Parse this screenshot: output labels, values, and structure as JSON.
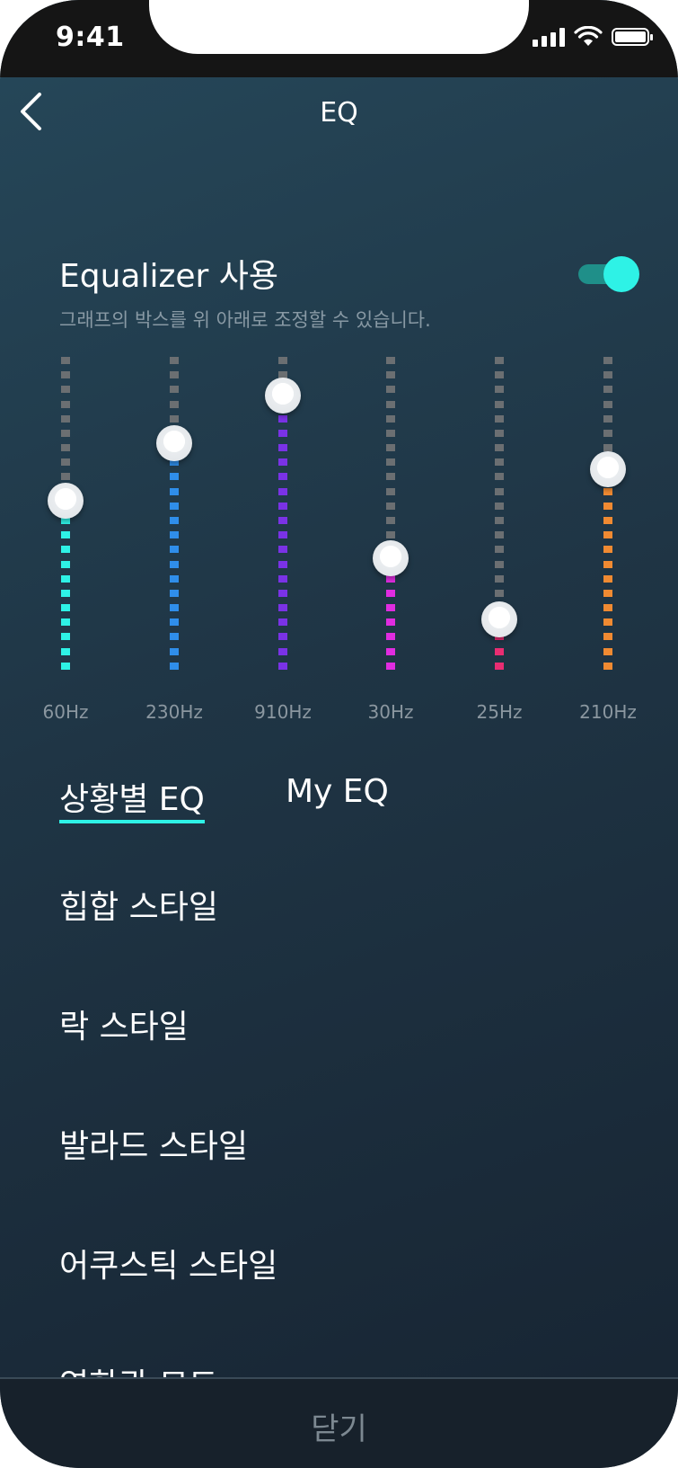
{
  "status_bar": {
    "time": "9:41"
  },
  "header": {
    "title": "EQ",
    "back_icon": "chevron-left-icon"
  },
  "equalizer": {
    "label": "Equalizer 사용",
    "hint": "그래프의 박스를 위 아래로 조정할 수 있습니다.",
    "enabled": true,
    "toggle_color": "#2ef2e6",
    "inactive_color": "#6b6f72",
    "bands": [
      {
        "hz": "60Hz",
        "level": 0.55,
        "color": "#2ef2e6"
      },
      {
        "hz": "230Hz",
        "level": 0.73,
        "color": "#2f8eea"
      },
      {
        "hz": "910Hz",
        "level": 0.88,
        "color": "#7a32e6"
      },
      {
        "hz": "30Hz",
        "level": 0.37,
        "color": "#e02ce0"
      },
      {
        "hz": "25Hz",
        "level": 0.18,
        "color": "#e82d72"
      },
      {
        "hz": "210Hz",
        "level": 0.65,
        "color": "#f08a32"
      }
    ]
  },
  "tabs": [
    {
      "label": "상황별 EQ",
      "active": true
    },
    {
      "label": "My EQ",
      "active": false
    }
  ],
  "presets": [
    "힙합 스타일",
    "락 스타일",
    "발라드 스타일",
    "어쿠스틱 스타일",
    "영화관 모드"
  ],
  "footer": {
    "close_label": "닫기"
  }
}
